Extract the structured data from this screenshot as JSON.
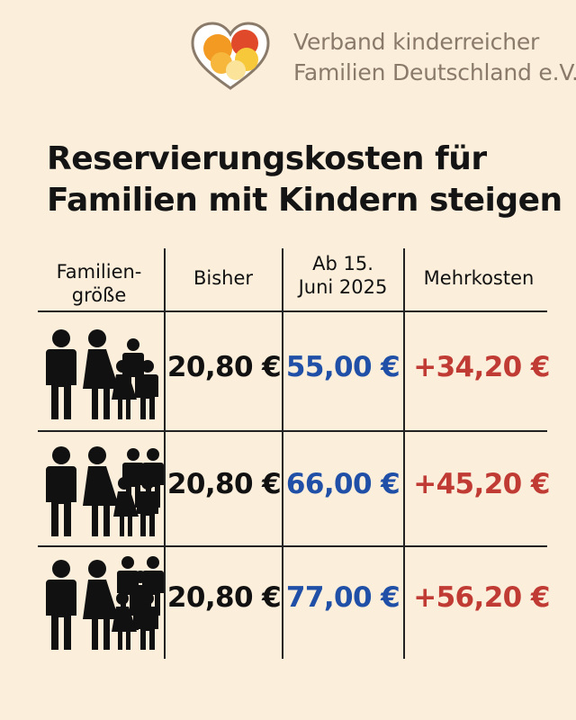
{
  "organization": {
    "name_line1": "Verband kinderreicher",
    "name_line2": "Familien Deutschland e.V.",
    "logo_icon": "heart-circles-logo-icon"
  },
  "headline": {
    "line1": "Reservierungskosten für",
    "line2": "Familien mit Kindern steigen"
  },
  "table": {
    "headers": {
      "family_size_line1": "Familien-",
      "family_size_line2": "größe",
      "previous": "Bisher",
      "new_line1": "Ab 15.",
      "new_line2": "Juni 2025",
      "extra_cost": "Mehrkosten"
    },
    "rows": [
      {
        "family_icon": "family-2-adults-2-children-icon",
        "previous": "20,80 €",
        "new": "55,00 €",
        "extra": "+34,20 €"
      },
      {
        "family_icon": "family-2-adults-4-children-icon",
        "previous": "20,80 €",
        "new": "66,00 €",
        "extra": "+45,20 €"
      },
      {
        "family_icon": "family-2-adults-5-children-icon",
        "previous": "20,80 €",
        "new": "77,00 €",
        "extra": "+56,20 €"
      }
    ]
  },
  "colors": {
    "background": "#fbeedb",
    "new_price": "#1f4fa6",
    "extra_cost": "#c13b35",
    "org_text": "#8a7a6a"
  }
}
